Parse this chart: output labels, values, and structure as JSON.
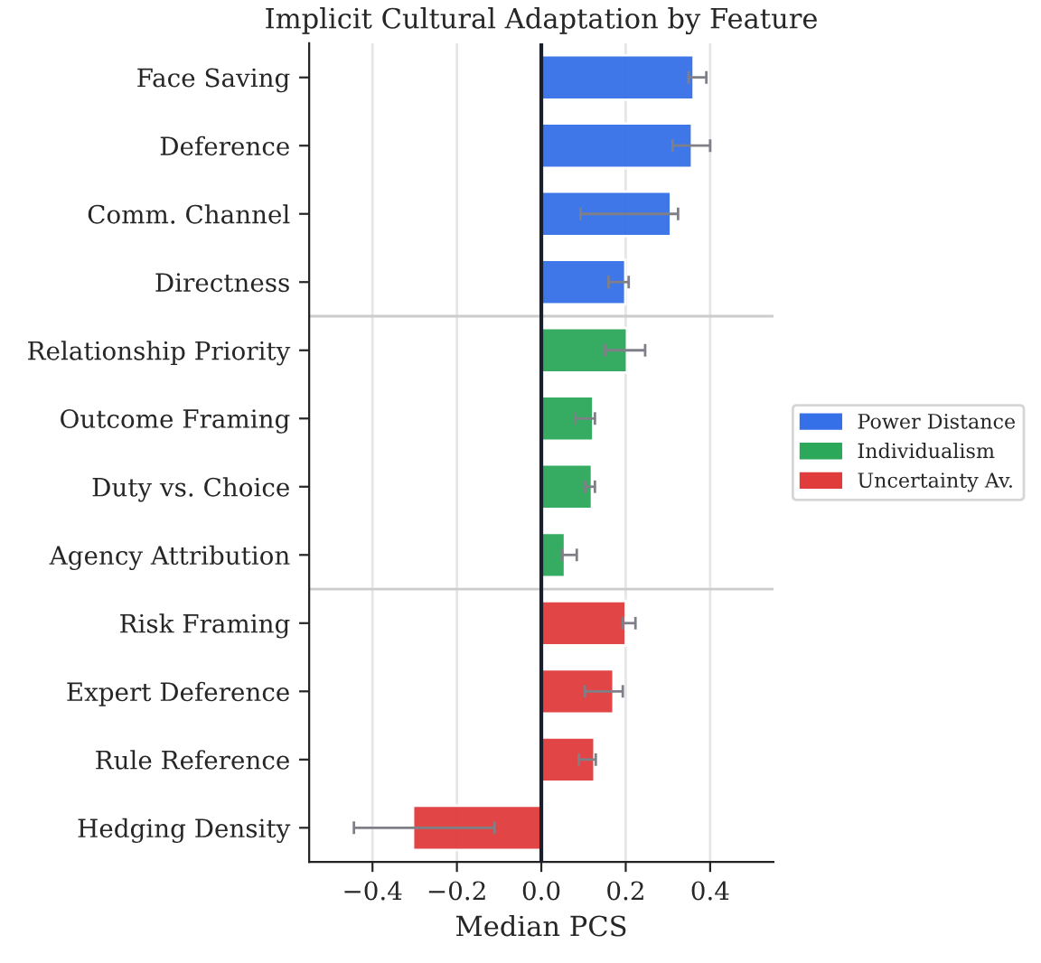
{
  "chart_data": {
    "type": "bar",
    "orientation": "horizontal",
    "title": "Implicit Cultural Adaptation by Feature",
    "xlabel": "Median PCS",
    "categories": [
      "Face Saving",
      "Deference",
      "Comm. Channel",
      "Directness",
      "Relationship Priority",
      "Outcome Framing",
      "Duty vs. Choice",
      "Agency Attribution",
      "Risk Framing",
      "Expert Deference",
      "Rule Reference",
      "Hedging Density"
    ],
    "series": [
      {
        "name": "Power Distance",
        "color": "#3570e8",
        "values": [
          0.361,
          0.357,
          0.307,
          0.199,
          null,
          null,
          null,
          null,
          null,
          null,
          null,
          null
        ],
        "errors": [
          [
            0.349,
            0.391
          ],
          [
            0.311,
            0.4
          ],
          [
            0.093,
            0.324
          ],
          [
            0.159,
            0.207
          ],
          null,
          null,
          null,
          null,
          null,
          null,
          null,
          null
        ]
      },
      {
        "name": "Individualism",
        "color": "#2ca85a",
        "values": [
          null,
          null,
          null,
          null,
          0.203,
          0.123,
          0.12,
          0.056,
          null,
          null,
          null,
          null
        ],
        "errors": [
          null,
          null,
          null,
          null,
          [
            0.151,
            0.246
          ],
          [
            0.08,
            0.127
          ],
          [
            0.104,
            0.127
          ],
          [
            0.049,
            0.084
          ],
          null,
          null,
          null,
          null
        ]
      },
      {
        "name": "Uncertainty Av.",
        "color": "#e03c3c",
        "values": [
          null,
          null,
          null,
          null,
          null,
          null,
          null,
          null,
          0.2,
          0.171,
          0.126,
          -0.304
        ],
        "errors": [
          null,
          null,
          null,
          null,
          null,
          null,
          null,
          null,
          [
            0.193,
            0.223
          ],
          [
            0.103,
            0.193
          ],
          [
            0.089,
            0.129
          ],
          [
            -0.444,
            -0.111
          ]
        ]
      }
    ],
    "xlim": [
      -0.55,
      0.55
    ],
    "xticks": [
      {
        "value": -0.4,
        "label": "−0.4"
      },
      {
        "value": -0.2,
        "label": "−0.2"
      },
      {
        "value": 0.0,
        "label": "0.0"
      },
      0.2,
      0.4
    ],
    "grid": "x",
    "legend": "right",
    "ref_lines": [
      {
        "axis": "x",
        "value": 0,
        "color": "#1a1f2e"
      }
    ]
  }
}
